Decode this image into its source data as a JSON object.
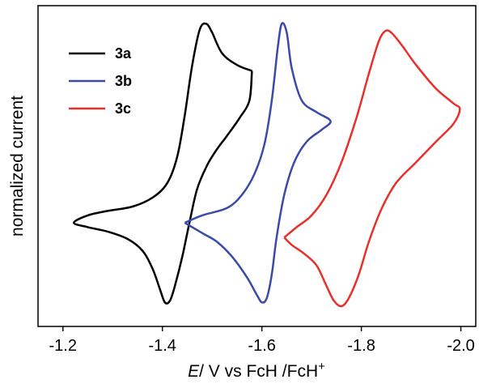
{
  "chart_data": {
    "type": "line",
    "title": "",
    "xlabel_italic": "E",
    "xlabel_rest": "/ V vs FcH /FcH",
    "xlabel_sup": "+",
    "ylabel": "normalized current",
    "xlim": [
      -1.15,
      -2.03
    ],
    "ylim": [
      0,
      1
    ],
    "x_ticks": [
      -1.2,
      -1.4,
      -1.6,
      -1.8,
      -2.0
    ],
    "x_tick_labels": [
      "-1.2",
      "-1.4",
      "-1.6",
      "-1.8",
      "-2.0"
    ],
    "y_ticks_shown": false,
    "legend_position": "top-left",
    "series": [
      {
        "name": "3a",
        "color": "#000000",
        "points": [
          [
            -1.58,
            0.82
          ],
          [
            -1.55,
            0.84
          ],
          [
            -1.52,
            0.88
          ],
          [
            -1.5,
            0.95
          ],
          [
            -1.488,
            0.98
          ],
          [
            -1.475,
            0.96
          ],
          [
            -1.46,
            0.84
          ],
          [
            -1.445,
            0.67
          ],
          [
            -1.43,
            0.53
          ],
          [
            -1.41,
            0.44
          ],
          [
            -1.38,
            0.39
          ],
          [
            -1.34,
            0.36
          ],
          [
            -1.29,
            0.345
          ],
          [
            -1.25,
            0.33
          ],
          [
            -1.222,
            0.305
          ],
          [
            -1.25,
            0.29
          ],
          [
            -1.29,
            0.275
          ],
          [
            -1.33,
            0.25
          ],
          [
            -1.36,
            0.21
          ],
          [
            -1.38,
            0.15
          ],
          [
            -1.395,
            0.08
          ],
          [
            -1.405,
            0.035
          ],
          [
            -1.415,
            0.04
          ],
          [
            -1.425,
            0.09
          ],
          [
            -1.44,
            0.19
          ],
          [
            -1.455,
            0.31
          ],
          [
            -1.47,
            0.42
          ],
          [
            -1.49,
            0.5
          ],
          [
            -1.51,
            0.555
          ],
          [
            -1.53,
            0.6
          ],
          [
            -1.555,
            0.66
          ],
          [
            -1.575,
            0.72
          ],
          [
            -1.58,
            0.82
          ]
        ]
      },
      {
        "name": "3b",
        "color": "#3a4aa8",
        "points": [
          [
            -1.445,
            0.305
          ],
          [
            -1.48,
            0.33
          ],
          [
            -1.53,
            0.355
          ],
          [
            -1.56,
            0.4
          ],
          [
            -1.585,
            0.47
          ],
          [
            -1.605,
            0.57
          ],
          [
            -1.62,
            0.72
          ],
          [
            -1.632,
            0.9
          ],
          [
            -1.64,
            0.98
          ],
          [
            -1.65,
            0.95
          ],
          [
            -1.66,
            0.83
          ],
          [
            -1.68,
            0.72
          ],
          [
            -1.71,
            0.68
          ],
          [
            -1.738,
            0.65
          ],
          [
            -1.72,
            0.62
          ],
          [
            -1.69,
            0.58
          ],
          [
            -1.665,
            0.51
          ],
          [
            -1.645,
            0.4
          ],
          [
            -1.63,
            0.26
          ],
          [
            -1.62,
            0.13
          ],
          [
            -1.61,
            0.05
          ],
          [
            -1.6,
            0.035
          ],
          [
            -1.59,
            0.06
          ],
          [
            -1.57,
            0.12
          ],
          [
            -1.54,
            0.19
          ],
          [
            -1.51,
            0.24
          ],
          [
            -1.48,
            0.27
          ],
          [
            -1.445,
            0.305
          ]
        ]
      },
      {
        "name": "3c",
        "color": "#e8302a",
        "points": [
          [
            -1.645,
            0.255
          ],
          [
            -1.67,
            0.29
          ],
          [
            -1.7,
            0.33
          ],
          [
            -1.73,
            0.4
          ],
          [
            -1.76,
            0.51
          ],
          [
            -1.79,
            0.66
          ],
          [
            -1.815,
            0.81
          ],
          [
            -1.835,
            0.92
          ],
          [
            -1.848,
            0.955
          ],
          [
            -1.86,
            0.95
          ],
          [
            -1.88,
            0.91
          ],
          [
            -1.91,
            0.84
          ],
          [
            -1.95,
            0.76
          ],
          [
            -1.985,
            0.71
          ],
          [
            -1.998,
            0.69
          ],
          [
            -1.985,
            0.64
          ],
          [
            -1.95,
            0.58
          ],
          [
            -1.91,
            0.51
          ],
          [
            -1.87,
            0.44
          ],
          [
            -1.84,
            0.35
          ],
          [
            -1.815,
            0.24
          ],
          [
            -1.795,
            0.13
          ],
          [
            -1.775,
            0.05
          ],
          [
            -1.76,
            0.022
          ],
          [
            -1.745,
            0.04
          ],
          [
            -1.73,
            0.09
          ],
          [
            -1.71,
            0.16
          ],
          [
            -1.685,
            0.2
          ],
          [
            -1.66,
            0.23
          ],
          [
            -1.645,
            0.255
          ]
        ]
      }
    ]
  }
}
